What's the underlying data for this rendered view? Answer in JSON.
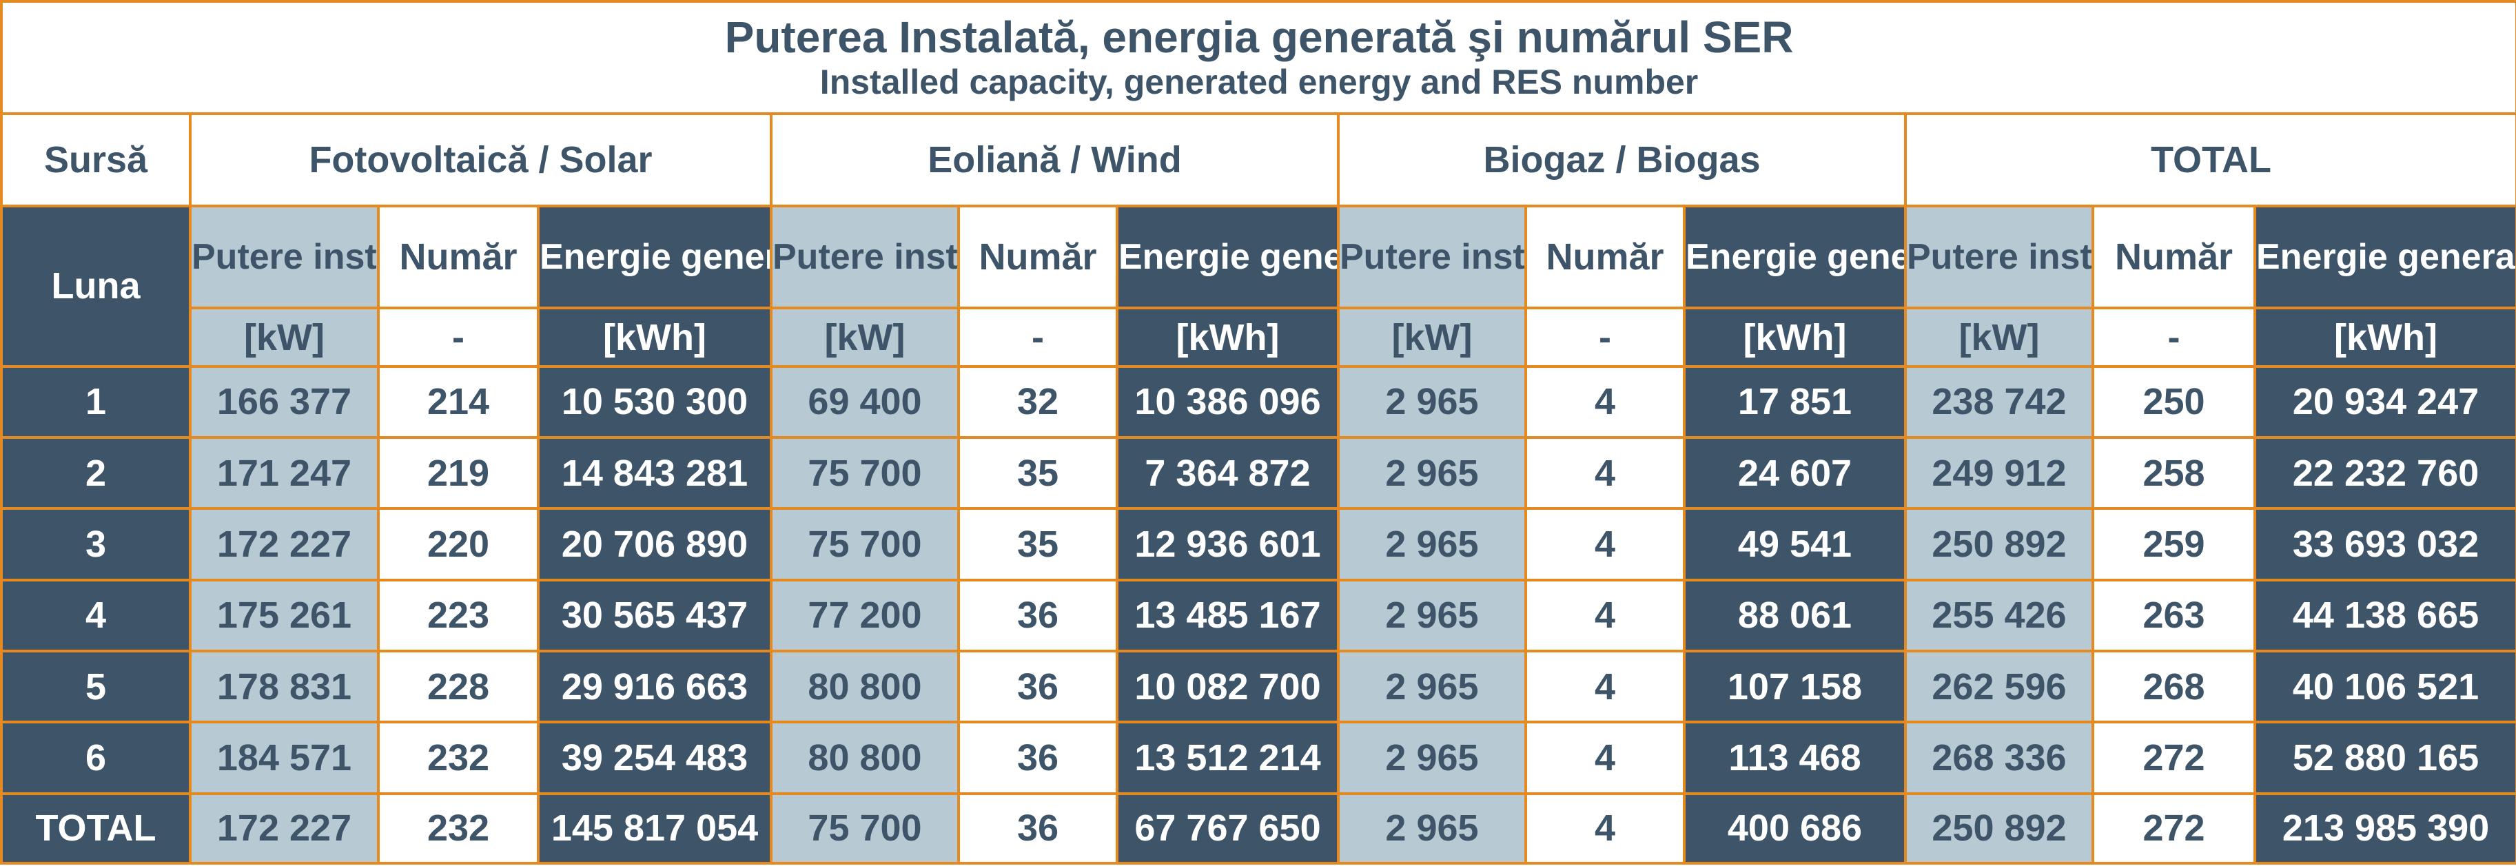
{
  "title": {
    "ro": "Puterea Instalată, energia generată şi numărul SER",
    "en": "Installed capacity, generated energy and RES number"
  },
  "header": {
    "source_label": "Sursă",
    "month_label": "Luna",
    "groups": [
      "Fotovoltaică / Solar",
      "Eoliană / Wind",
      "Biogaz / Biogas",
      "TOTAL"
    ],
    "col_power": "Putere instalată",
    "col_number": "Număr",
    "col_energy": "Energie generată",
    "unit_power": "[kW]",
    "unit_number": "-",
    "unit_energy": "[kWh]"
  },
  "rows": [
    {
      "month": "1",
      "cells": [
        "166 377",
        "214",
        "10 530 300",
        "69 400",
        "32",
        "10 386 096",
        "2 965",
        "4",
        "17 851",
        "238 742",
        "250",
        "20 934 247"
      ]
    },
    {
      "month": "2",
      "cells": [
        "171 247",
        "219",
        "14 843 281",
        "75 700",
        "35",
        "7 364 872",
        "2 965",
        "4",
        "24 607",
        "249 912",
        "258",
        "22 232 760"
      ]
    },
    {
      "month": "3",
      "cells": [
        "172 227",
        "220",
        "20 706 890",
        "75 700",
        "35",
        "12 936 601",
        "2 965",
        "4",
        "49 541",
        "250 892",
        "259",
        "33 693 032"
      ]
    },
    {
      "month": "4",
      "cells": [
        "175 261",
        "223",
        "30 565 437",
        "77 200",
        "36",
        "13 485 167",
        "2 965",
        "4",
        "88 061",
        "255 426",
        "263",
        "44 138 665"
      ]
    },
    {
      "month": "5",
      "cells": [
        "178 831",
        "228",
        "29 916 663",
        "80 800",
        "36",
        "10 082 700",
        "2 965",
        "4",
        "107 158",
        "262 596",
        "268",
        "40 106 521"
      ]
    },
    {
      "month": "6",
      "cells": [
        "184 571",
        "232",
        "39 254 483",
        "80 800",
        "36",
        "13 512 214",
        "2 965",
        "4",
        "113 468",
        "268 336",
        "272",
        "52 880 165"
      ]
    },
    {
      "month": "TOTAL",
      "cells": [
        "172 227",
        "232",
        "145 817 054",
        "75 700",
        "36",
        "67 767 650",
        "2 965",
        "4",
        "400 686",
        "250 892",
        "272",
        "213 985 390"
      ]
    }
  ],
  "colors": {
    "dark": "#3E5468",
    "light": "#B7C9D2",
    "border": "#E48A20",
    "white": "#FFFFFF"
  }
}
